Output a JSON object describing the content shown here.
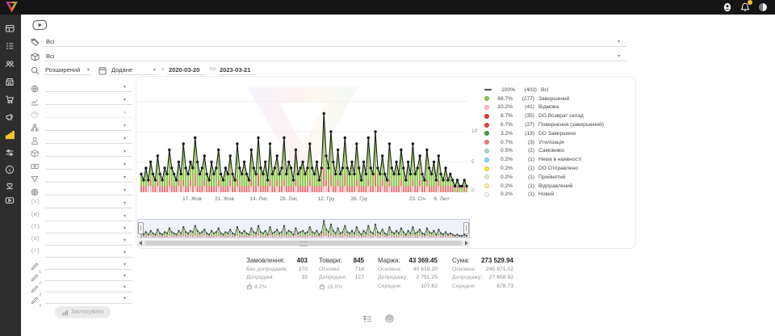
{
  "topbar": {
    "right_icons": [
      "user",
      "notifications",
      "theme-toggle"
    ],
    "notification_badge": true,
    "badge_color": "#f2c230"
  },
  "sidebar": {
    "active_color": "#f2c230",
    "items": [
      {
        "name": "dashboard",
        "active": false
      },
      {
        "name": "orders",
        "active": false
      },
      {
        "name": "customers",
        "active": false
      },
      {
        "name": "store",
        "active": false
      },
      {
        "name": "cart",
        "active": false
      },
      {
        "name": "marketing",
        "active": false
      },
      {
        "name": "analytics",
        "active": true
      },
      {
        "name": "settings",
        "active": false
      },
      {
        "name": "info",
        "active": false
      },
      {
        "name": "support",
        "active": false
      },
      {
        "name": "video",
        "active": false
      }
    ]
  },
  "filters_top": {
    "rows": [
      {
        "icon": "tags",
        "value": "Всі"
      },
      {
        "icon": "package",
        "value": "Всі"
      }
    ],
    "search": {
      "mode": "Розширений",
      "date_field": "Додане",
      "from_label": "з",
      "date_from": "2020-03-20",
      "to_label": "по",
      "date_to": "2023-03-21"
    }
  },
  "filter_panel": {
    "apply_button": "Застосувати",
    "rows": [
      {
        "icon": "globe"
      },
      {
        "icon": "trend"
      },
      {
        "icon": "help",
        "disabled": true
      },
      {
        "icon": "hierarchy"
      },
      {
        "icon": "user"
      },
      {
        "icon": "cube"
      },
      {
        "icon": "banknote"
      },
      {
        "icon": "funnel"
      },
      {
        "icon": "globe-grid"
      },
      {
        "icon": "braces",
        "glyph": "{s}"
      },
      {
        "icon": "braces",
        "glyph": "{m}"
      },
      {
        "icon": "braces",
        "glyph": "{t}"
      },
      {
        "icon": "braces",
        "glyph": "{d}"
      },
      {
        "icon": "braces",
        "glyph": "{r}"
      },
      {
        "icon": "pencil",
        "glyph": "1"
      },
      {
        "icon": "pencil",
        "glyph": "2"
      },
      {
        "icon": "pencil",
        "glyph": "3"
      },
      {
        "icon": "pencil",
        "glyph": "4"
      }
    ]
  },
  "chart_data": {
    "type": "bar+line",
    "title": "",
    "ylim": [
      0,
      16
    ],
    "y_ticks": [
      "10",
      "5",
      "0"
    ],
    "grid": true,
    "legend_position": "right",
    "line_color": "#1d1d1d",
    "bar_colors": {
      "green": "#8BC34A",
      "red": "#E57373",
      "pink": "#F5BEC3"
    },
    "first_bar_color": "#7FDBE8",
    "x_ticks": [
      {
        "label": "17. Жов",
        "f": 0.165
      },
      {
        "label": "31. Жов",
        "f": 0.262
      },
      {
        "label": "14. Лис",
        "f": 0.365
      },
      {
        "label": "28. Лис",
        "f": 0.455
      },
      {
        "label": "12. Гру",
        "f": 0.568
      },
      {
        "label": "26. Гру",
        "f": 0.667
      },
      {
        "label": "23. Січ",
        "f": 0.842
      },
      {
        "label": "6. Лют",
        "f": 0.915
      }
    ],
    "bars_green": [
      2,
      1,
      3,
      1,
      3,
      2,
      1,
      4,
      2,
      1,
      3,
      2,
      5,
      3,
      2,
      1,
      3,
      2,
      6,
      3,
      2,
      3,
      3,
      6,
      4,
      2,
      3,
      4,
      2,
      1,
      4,
      2,
      3,
      5,
      2,
      1,
      3,
      2,
      4,
      2,
      1,
      6,
      3,
      2,
      4,
      2,
      1,
      5,
      3,
      2,
      6,
      3,
      2,
      4,
      1,
      6,
      2,
      3,
      4,
      2,
      3,
      7,
      2,
      4,
      3,
      1,
      5,
      2,
      3,
      4,
      2,
      3,
      6,
      3,
      2,
      4,
      1,
      3,
      9,
      4,
      3,
      7,
      4,
      2,
      5,
      2,
      3,
      6,
      3,
      2,
      4,
      2,
      6,
      3,
      1,
      4,
      2,
      7,
      3,
      2,
      7,
      3,
      2,
      4,
      2,
      1,
      6,
      3,
      2,
      4,
      2,
      5,
      3,
      1,
      4,
      2,
      6,
      2,
      3,
      4,
      2,
      1,
      5,
      3,
      2,
      4,
      1,
      4,
      2,
      1,
      3,
      1,
      2,
      1,
      1,
      1,
      1,
      1,
      1,
      1
    ],
    "bars_red": [
      1,
      1,
      1,
      0,
      1,
      1,
      1,
      1,
      1,
      1,
      1,
      1,
      1,
      1,
      1,
      1,
      1,
      1,
      1,
      1,
      1,
      1,
      1,
      2,
      1,
      1,
      1,
      1,
      1,
      1,
      1,
      1,
      1,
      1,
      1,
      1,
      1,
      1,
      1,
      1,
      1,
      1,
      1,
      1,
      1,
      1,
      1,
      1,
      1,
      1,
      2,
      1,
      1,
      1,
      1,
      1,
      1,
      1,
      1,
      1,
      1,
      1,
      1,
      1,
      1,
      1,
      1,
      1,
      1,
      1,
      1,
      1,
      1,
      1,
      1,
      1,
      1,
      1,
      3,
      1,
      1,
      2,
      1,
      1,
      1,
      1,
      1,
      2,
      1,
      1,
      1,
      1,
      1,
      1,
      1,
      1,
      1,
      1,
      1,
      1,
      2,
      1,
      1,
      1,
      1,
      1,
      1,
      1,
      1,
      1,
      1,
      1,
      1,
      1,
      1,
      1,
      1,
      1,
      1,
      1,
      1,
      1,
      1,
      1,
      1,
      1,
      1,
      1,
      1,
      1,
      1,
      1,
      1,
      1,
      0,
      1,
      0,
      0,
      1,
      0
    ],
    "bars_pink": [
      0,
      0,
      0,
      1,
      1,
      0,
      0,
      1,
      0,
      0,
      0,
      0,
      1,
      0,
      0,
      0,
      1,
      0,
      1,
      0,
      0,
      1,
      0,
      1,
      0,
      0,
      0,
      1,
      0,
      0,
      0,
      0,
      0,
      1,
      0,
      0,
      0,
      0,
      1,
      0,
      0,
      1,
      0,
      0,
      0,
      0,
      0,
      1,
      0,
      0,
      1,
      0,
      0,
      0,
      0,
      1,
      0,
      0,
      1,
      0,
      0,
      1,
      0,
      0,
      0,
      0,
      1,
      0,
      0,
      0,
      0,
      0,
      1,
      0,
      0,
      0,
      0,
      0,
      1,
      1,
      0,
      1,
      0,
      0,
      1,
      0,
      0,
      1,
      0,
      0,
      0,
      0,
      1,
      0,
      0,
      0,
      0,
      1,
      0,
      0,
      1,
      0,
      0,
      1,
      0,
      0,
      1,
      0,
      0,
      0,
      0,
      1,
      0,
      0,
      0,
      0,
      1,
      0,
      0,
      1,
      0,
      0,
      1,
      0,
      0,
      0,
      0,
      1,
      0,
      0,
      0,
      0,
      0,
      0,
      0,
      0,
      0,
      0,
      0,
      0
    ]
  },
  "legend": {
    "items": [
      {
        "pct": "100%",
        "count": "(403)",
        "label": "Всі",
        "swatch": "dash",
        "color": "#4a4a4a"
      },
      {
        "pct": "68.7%",
        "count": "(277)",
        "label": "Завершений",
        "swatch": "dot",
        "color": "#8BC34A"
      },
      {
        "pct": "10.2%",
        "count": "(41)",
        "label": "Відмова",
        "swatch": "dot",
        "color": "#F5BEC3"
      },
      {
        "pct": "8.7%",
        "count": "(35)",
        "label": "DO Возврат склад",
        "swatch": "dot",
        "color": "#E53935"
      },
      {
        "pct": "6.7%",
        "count": "(27)",
        "label": "Повернення (завершений)",
        "swatch": "dot",
        "color": "#E2423E"
      },
      {
        "pct": "3.2%",
        "count": "(13)",
        "label": "DO Завершено",
        "swatch": "dot",
        "color": "#43A047"
      },
      {
        "pct": "0.7%",
        "count": "(3)",
        "label": "Утилізація",
        "swatch": "dot",
        "color": "#EF7B73"
      },
      {
        "pct": "0.5%",
        "count": "(2)",
        "label": "Самовивіз",
        "swatch": "dot",
        "color": "#AFD6CE"
      },
      {
        "pct": "0.2%",
        "count": "(1)",
        "label": "Нема в наявності",
        "swatch": "dot",
        "color": "#7FDBE8"
      },
      {
        "pct": "0.2%",
        "count": "(1)",
        "label": "DO Отправлено",
        "swatch": "dot",
        "color": "#FBE23B"
      },
      {
        "pct": "0.2%",
        "count": "(1)",
        "label": "Прийнятий",
        "swatch": "dot",
        "color": "#DDEBC8"
      },
      {
        "pct": "0.2%",
        "count": "(1)",
        "label": "Відправлений",
        "swatch": "dot",
        "color": "#F7EFA0"
      },
      {
        "pct": "0.2%",
        "count": "(1)",
        "label": "Новий",
        "swatch": "dot",
        "color": "#F4F4F4"
      }
    ]
  },
  "stats": {
    "columns": [
      {
        "title": "Замовлення:",
        "value": "403",
        "rows": [
          {
            "label": "Без допродажів:",
            "value": "370"
          },
          {
            "label": "Допродані:",
            "value": "33"
          }
        ],
        "rate": "8.2%"
      },
      {
        "title": "Товари:",
        "value": "845",
        "rows": [
          {
            "label": "Основні:",
            "value": "718"
          },
          {
            "label": "Допродані:",
            "value": "127"
          }
        ],
        "rate": "15.0%"
      },
      {
        "title": "Маржа:",
        "value": "43 369.45",
        "rows": [
          {
            "label": "Основна:",
            "value": "40 618.20"
          },
          {
            "label": "Допродажу:",
            "value": "2 751.25"
          },
          {
            "label": "Середня:",
            "value": "107.62"
          }
        ]
      },
      {
        "title": "Сума:",
        "value": "273 529.94",
        "rows": [
          {
            "label": "Основна:",
            "value": "245 871.02"
          },
          {
            "label": "Допродажу:",
            "value": "27 658.92"
          },
          {
            "label": "Середня:",
            "value": "678.73"
          }
        ]
      }
    ]
  },
  "footer_icons": [
    "list-view",
    "package-view"
  ]
}
